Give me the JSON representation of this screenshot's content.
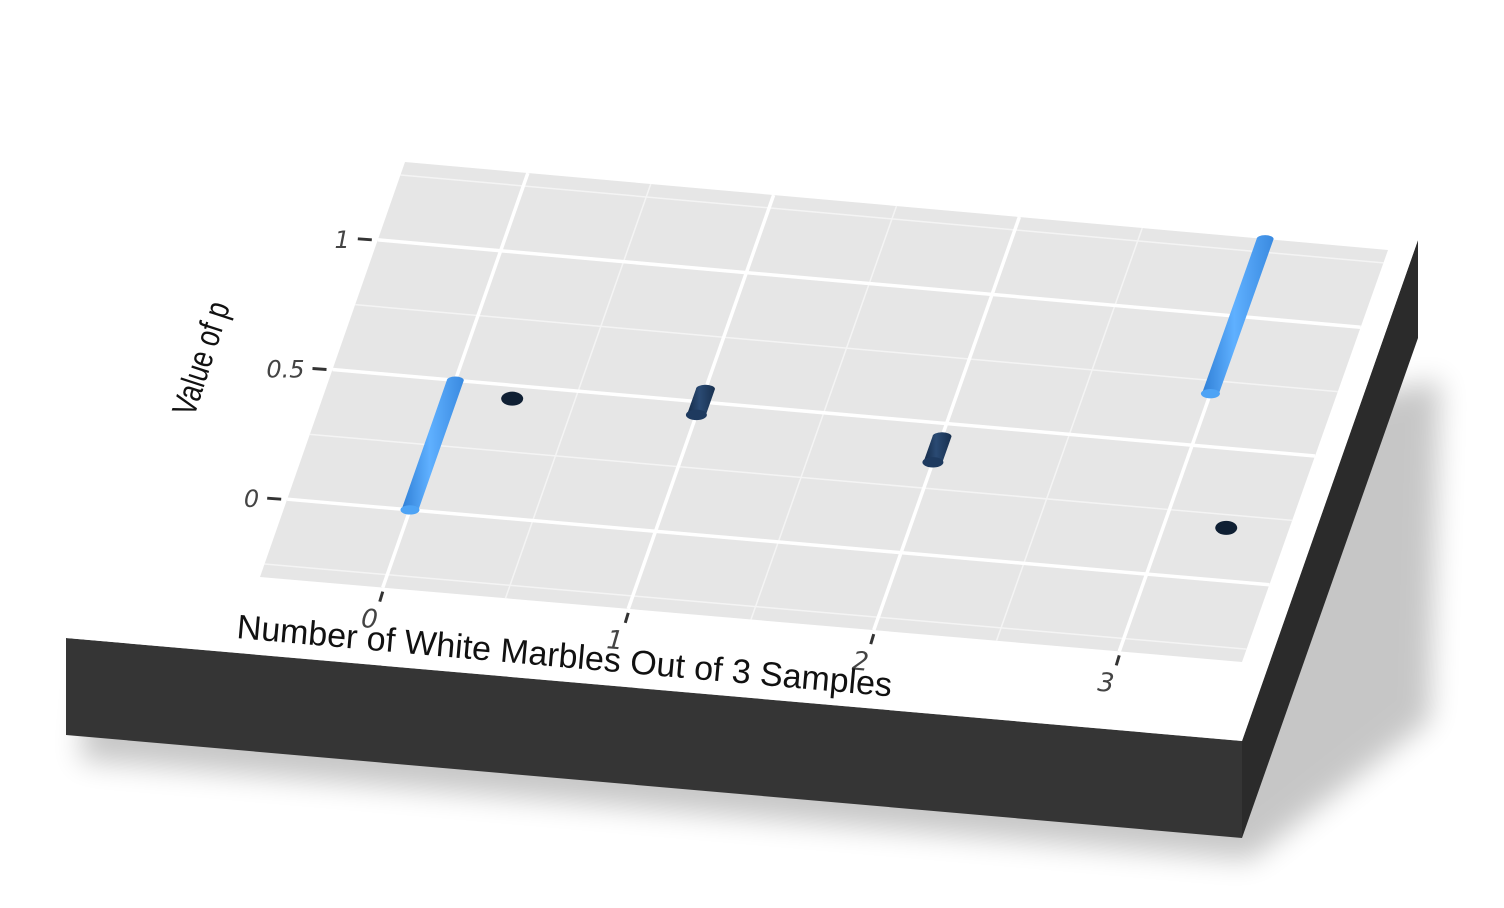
{
  "chart_data": {
    "type": "bar",
    "style": "3d-perspective lollipop / segment plot",
    "xlabel": "Number of White Marbles Out of 3 Samples",
    "ylabel": "Value of p",
    "x_ticks": [
      "0",
      "1",
      "2",
      "3"
    ],
    "y_ticks": [
      "0",
      "0.5",
      "1"
    ],
    "x_range": [
      -0.5,
      3.5
    ],
    "y_range": [
      -0.3,
      1.3
    ],
    "grid": true,
    "series": [
      {
        "color": "#4da3f5",
        "points": [
          {
            "x": 0,
            "y_start": 0.0,
            "y_end": 0.5
          },
          {
            "x": 3,
            "y_start": 0.7,
            "y_end": 1.3
          }
        ]
      },
      {
        "color": "#1e3a5f",
        "points": [
          {
            "x": 1,
            "y_start": 0.45,
            "y_end": 0.55
          },
          {
            "x": 2,
            "y_start": 0.35,
            "y_end": 0.45
          }
        ]
      },
      {
        "color": "#0f1f33",
        "points": [
          {
            "x": 0.25,
            "y_start": 0.45,
            "y_end": 0.45
          },
          {
            "x": 3.25,
            "y_start": 0.2,
            "y_end": 0.2
          }
        ]
      }
    ]
  }
}
